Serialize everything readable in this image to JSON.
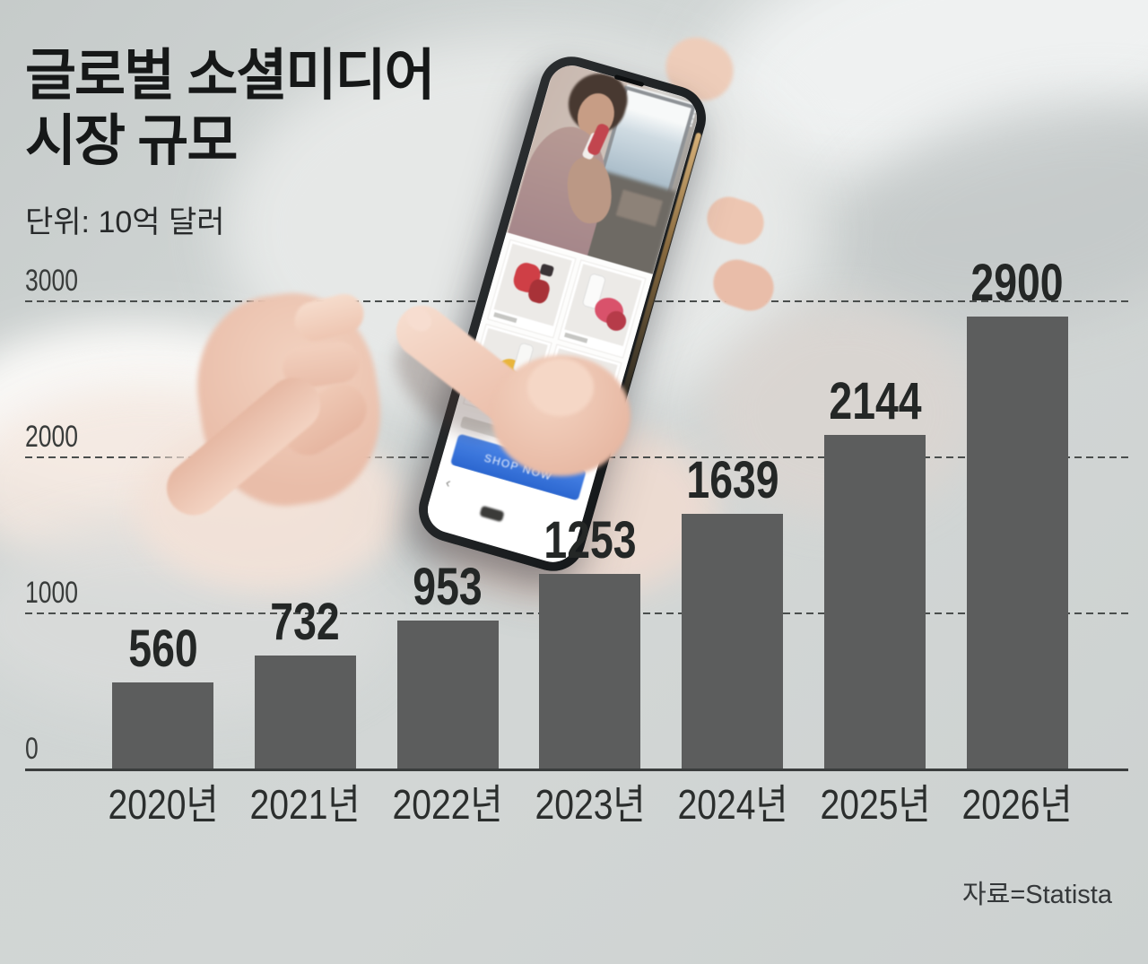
{
  "title": {
    "line1": "글로벌 소셜미디어",
    "line2": "시장 규모"
  },
  "subtitle": "단위: 10억 달러",
  "source": "자료=Statista",
  "colors": {
    "bar": "#5c5d5d",
    "gridline": "#4a4e4d",
    "axis": "#3a3d3d",
    "background": "#d0d5d4",
    "phone_button_blue": "#2f6fd7"
  },
  "phone": {
    "button_label": "SHOP NOW",
    "back_arrow": "‹"
  },
  "chart_data": {
    "type": "bar",
    "title": "글로벌 소셜미디어 시장 규모",
    "unit_label": "단위: 10억 달러",
    "categories": [
      "2020년",
      "2021년",
      "2022년",
      "2023년",
      "2024년",
      "2025년",
      "2026년"
    ],
    "values": [
      560,
      732,
      953,
      1253,
      1639,
      2144,
      2900
    ],
    "value_labels": true,
    "xlabel": "",
    "ylabel": "",
    "ylim": [
      0,
      3000
    ],
    "yticks": [
      0,
      1000,
      2000,
      3000
    ],
    "grid": "dashed-horizontal",
    "legend": "none",
    "source": "자료=Statista"
  }
}
